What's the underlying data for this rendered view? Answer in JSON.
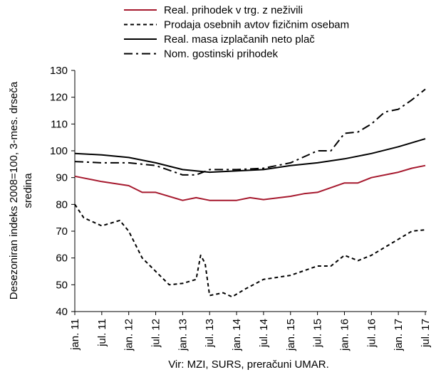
{
  "chart_data": {
    "type": "line",
    "ylabel_lines": [
      "Desezoniran indeks 2008=100, 3-mes. drseča",
      "sredina"
    ],
    "source": "Vir: MZI, SURS, preračuni UMAR.",
    "ylim": [
      40,
      130
    ],
    "yticks": [
      40,
      50,
      60,
      70,
      80,
      90,
      100,
      110,
      120,
      130
    ],
    "x_range": [
      "jan. 11",
      "jul. 17"
    ],
    "x_ticks": [
      "jan. 11",
      "jul. 11",
      "jan. 12",
      "jul. 12",
      "jan. 13",
      "jul. 13",
      "jan. 14",
      "jul. 14",
      "jan. 15",
      "jul. 15",
      "jan. 16",
      "jul. 16",
      "jan. 17",
      "jul. 17"
    ],
    "grid": false,
    "legend_position": "top",
    "series": [
      {
        "name": "Real. prihodek v trg. z neživili",
        "color": "#a6192e",
        "dash": "solid",
        "points": [
          [
            "jan. 11",
            90.5
          ],
          [
            "jul. 11",
            88.5
          ],
          [
            "jan. 12",
            87
          ],
          [
            "apr. 12",
            84.5
          ],
          [
            "jul. 12",
            84.5
          ],
          [
            "jan. 13",
            81.5
          ],
          [
            "apr. 13",
            82.5
          ],
          [
            "jul. 13",
            81.5
          ],
          [
            "jan. 14",
            81.5
          ],
          [
            "apr. 14",
            82.5
          ],
          [
            "jul. 14",
            81.8
          ],
          [
            "jan. 15",
            83
          ],
          [
            "apr. 15",
            84
          ],
          [
            "jul. 15",
            84.5
          ],
          [
            "jan. 16",
            88
          ],
          [
            "apr. 16",
            88
          ],
          [
            "jul. 16",
            90
          ],
          [
            "jan. 17",
            92
          ],
          [
            "apr. 17",
            93.5
          ],
          [
            "jul. 17",
            94.5
          ]
        ]
      },
      {
        "name": "Prodaja osebnih avtov fizičnim osebam",
        "color": "#000000",
        "dash": "dashed",
        "points": [
          [
            "jan. 11",
            80
          ],
          [
            "mar. 11",
            75
          ],
          [
            "jul. 11",
            72
          ],
          [
            "nov. 11",
            74
          ],
          [
            "jan. 12",
            70
          ],
          [
            "apr. 12",
            60
          ],
          [
            "jul. 12",
            55
          ],
          [
            "okt. 12",
            50
          ],
          [
            "jan. 13",
            50.5
          ],
          [
            "apr. 13",
            52
          ],
          [
            "may 13",
            61
          ],
          [
            "jun. 13",
            58
          ],
          [
            "jul. 13",
            46
          ],
          [
            "okt. 13",
            47
          ],
          [
            "dec. 13",
            45.5
          ],
          [
            "mar. 14",
            48.5
          ],
          [
            "jul. 14",
            52
          ],
          [
            "jan. 15",
            53.5
          ],
          [
            "jul. 15",
            57
          ],
          [
            "okt. 15",
            57
          ],
          [
            "jan. 16",
            61
          ],
          [
            "apr. 16",
            59
          ],
          [
            "jul. 16",
            61
          ],
          [
            "jan. 17",
            67
          ],
          [
            "apr. 17",
            70
          ],
          [
            "jul. 17",
            70.5
          ]
        ]
      },
      {
        "name": "Real. masa izplačanih neto plač",
        "color": "#000000",
        "dash": "solid",
        "points": [
          [
            "jan. 11",
            99
          ],
          [
            "jul. 11",
            98.5
          ],
          [
            "jan. 12",
            97.5
          ],
          [
            "jul. 12",
            95.5
          ],
          [
            "jan. 13",
            93
          ],
          [
            "jul. 13",
            92
          ],
          [
            "jan. 14",
            92.5
          ],
          [
            "jul. 14",
            93
          ],
          [
            "jan. 15",
            94.5
          ],
          [
            "jul. 15",
            95.5
          ],
          [
            "jan. 16",
            97
          ],
          [
            "jul. 16",
            99
          ],
          [
            "jan. 17",
            101.5
          ],
          [
            "jul. 17",
            104.5
          ]
        ]
      },
      {
        "name": "Nom. gostinski prihodek",
        "color": "#000000",
        "dash": "dashdot",
        "points": [
          [
            "jan. 11",
            96
          ],
          [
            "jul. 11",
            95.5
          ],
          [
            "jan. 12",
            95.5
          ],
          [
            "jul. 12",
            94.5
          ],
          [
            "jan. 13",
            91
          ],
          [
            "apr. 13",
            91
          ],
          [
            "jul. 13",
            93
          ],
          [
            "jan. 14",
            93
          ],
          [
            "jul. 14",
            93.5
          ],
          [
            "jan. 15",
            95.5
          ],
          [
            "jul. 15",
            100
          ],
          [
            "okt. 15",
            100
          ],
          [
            "jan. 16",
            106.5
          ],
          [
            "apr. 16",
            107
          ],
          [
            "jul. 16",
            110
          ],
          [
            "okt. 16",
            114.5
          ],
          [
            "jan. 17",
            115.5
          ],
          [
            "apr. 17",
            119
          ],
          [
            "jul. 17",
            123
          ]
        ]
      }
    ]
  }
}
